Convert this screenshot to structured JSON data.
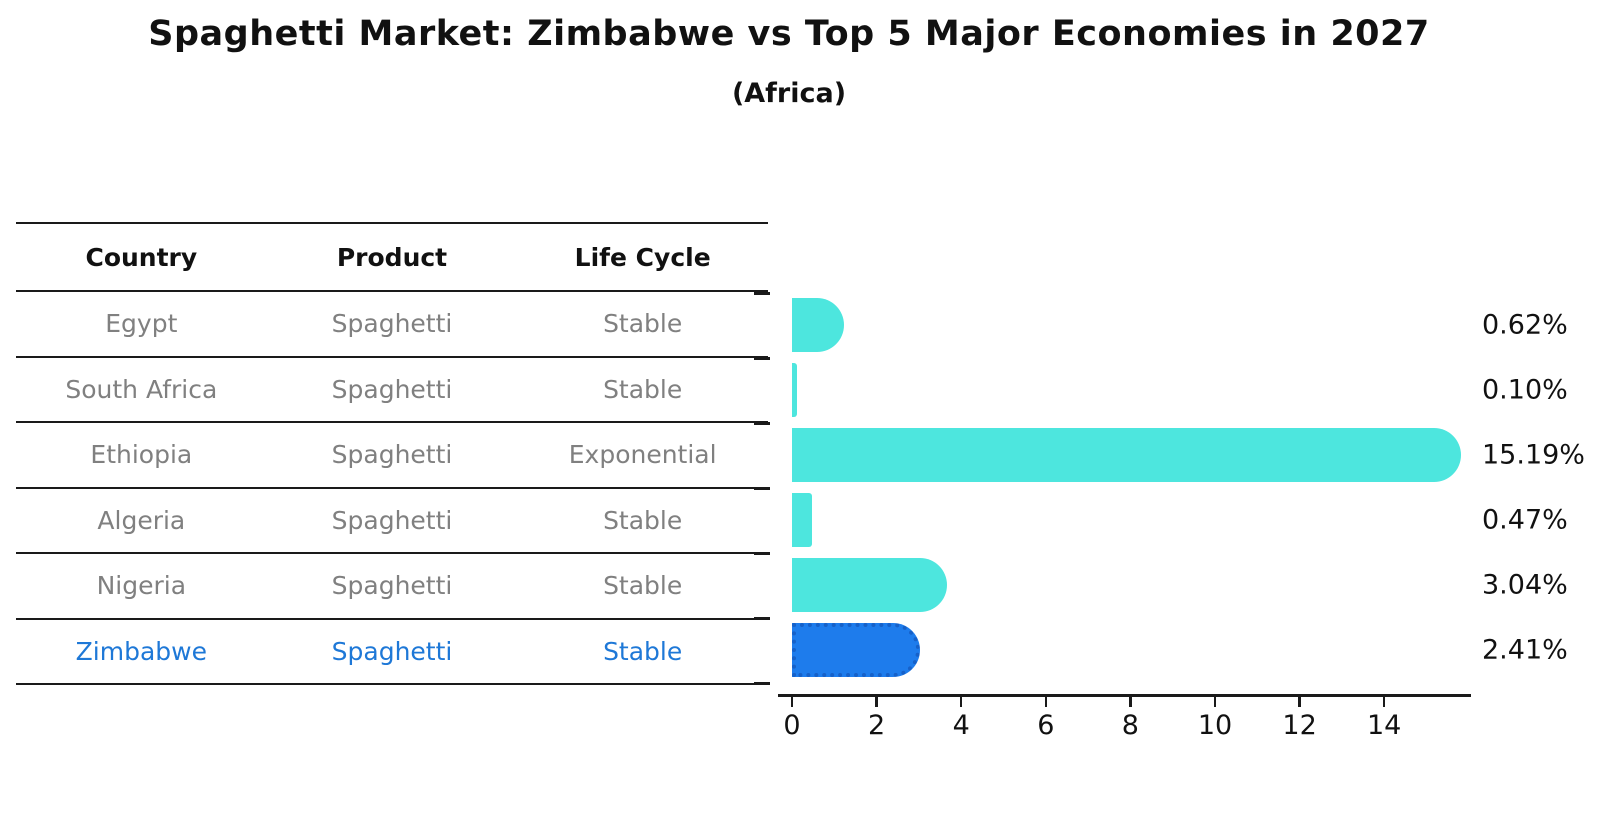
{
  "title": "Spaghetti Market: Zimbabwe vs Top 5 Major Economies in 2027",
  "subtitle": "(Africa)",
  "table": {
    "headers": [
      "Country",
      "Product",
      "Life Cycle"
    ],
    "rows": [
      {
        "country": "Egypt",
        "product": "Spaghetti",
        "life_cycle": "Stable",
        "highlighted": false
      },
      {
        "country": "South Africa",
        "product": "Spaghetti",
        "life_cycle": "Stable",
        "highlighted": false
      },
      {
        "country": "Ethiopia",
        "product": "Spaghetti",
        "life_cycle": "Exponential",
        "highlighted": false
      },
      {
        "country": "Algeria",
        "product": "Spaghetti",
        "life_cycle": "Stable",
        "highlighted": false
      },
      {
        "country": "Nigeria",
        "product": "Spaghetti",
        "life_cycle": "Stable",
        "highlighted": false
      },
      {
        "country": "Zimbabwe",
        "product": "Spaghetti",
        "life_cycle": "Stable",
        "highlighted": true
      }
    ]
  },
  "chart_data": {
    "type": "bar",
    "orientation": "horizontal",
    "title": "Spaghetti Market: Zimbabwe vs Top 5 Major Economies in 2027",
    "subtitle": "(Africa)",
    "categories": [
      "Egypt",
      "South Africa",
      "Ethiopia",
      "Algeria",
      "Nigeria",
      "Zimbabwe"
    ],
    "values": [
      0.62,
      0.1,
      15.19,
      0.47,
      3.04,
      2.41
    ],
    "value_labels": [
      "0.62%",
      "0.10%",
      "15.19%",
      "0.47%",
      "3.04%",
      "2.41%"
    ],
    "highlight_index": 5,
    "x_tick_labels": [
      "0",
      "2",
      "4",
      "6",
      "8",
      "10",
      "12",
      "14"
    ],
    "x_tick_values": [
      0,
      2,
      4,
      6,
      8,
      10,
      12,
      14
    ],
    "xlim": [
      0,
      16
    ],
    "grid": false,
    "legend_position": "none"
  },
  "colors": {
    "bar": "#4DE6DE",
    "highlight_bar": "#1E7CEC",
    "highlight_border": "#1661C9",
    "highlight_text": "#1E78D7",
    "row_text": "#808080",
    "header_text": "#111111",
    "value_text": "#111111",
    "line": "#1a1a1a"
  }
}
